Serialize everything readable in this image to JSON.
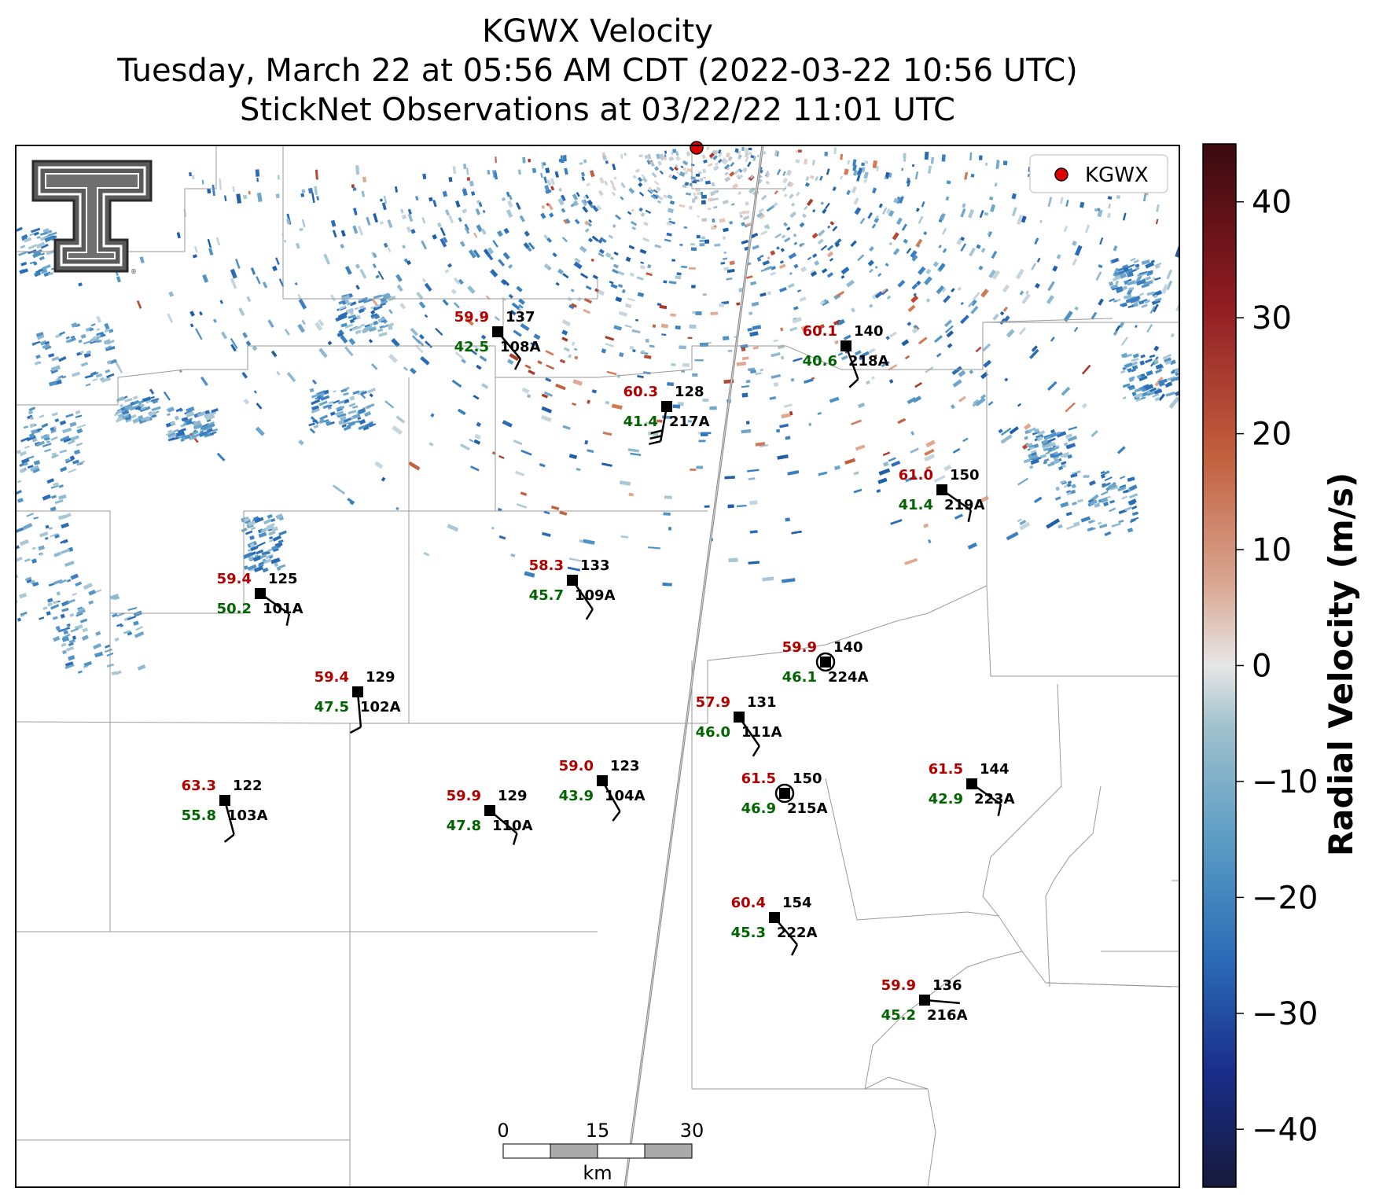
{
  "title": {
    "line1": "KGWX Velocity",
    "line2": "Tuesday, March 22 at 05:56 AM CDT (2022-03-22 10:56 UTC)",
    "line3": "StickNet Observations at 03/22/22 11:01 UTC"
  },
  "legend": {
    "label": "KGWX",
    "marker_color": "#e00000"
  },
  "colorbar": {
    "label": "Radial Velocity (m/s)",
    "ticks": [
      "40",
      "30",
      "20",
      "10",
      "0",
      "−10",
      "−20",
      "−30",
      "−40"
    ],
    "range": [
      -45,
      45
    ],
    "colors": [
      "#171a3b",
      "#1a2d8a",
      "#2b6cb7",
      "#5a9bc4",
      "#9fc0cd",
      "#e6e6e6",
      "#d9a590",
      "#c2603f",
      "#8f1b22",
      "#3a0a10"
    ]
  },
  "scale_bar": {
    "labels": [
      "0",
      "15",
      "30"
    ],
    "unit": "km"
  },
  "logo": {
    "name": "Texas Tech Double T"
  },
  "stations": [
    {
      "id": "108A",
      "temp": "59.9",
      "dew": "42.5",
      "pres": "137"
    },
    {
      "id": "218A",
      "temp": "60.1",
      "dew": "40.6",
      "pres": "140"
    },
    {
      "id": "217A",
      "temp": "60.3",
      "dew": "41.4",
      "pres": "128"
    },
    {
      "id": "219A",
      "temp": "61.0",
      "dew": "41.4",
      "pres": "150"
    },
    {
      "id": "109A",
      "temp": "58.3",
      "dew": "45.7",
      "pres": "133"
    },
    {
      "id": "101A",
      "temp": "59.4",
      "dew": "50.2",
      "pres": "125"
    },
    {
      "id": "224A",
      "temp": "59.9",
      "dew": "46.1",
      "pres": "140"
    },
    {
      "id": "102A",
      "temp": "59.4",
      "dew": "47.5",
      "pres": "129"
    },
    {
      "id": "111A",
      "temp": "57.9",
      "dew": "46.0",
      "pres": "131"
    },
    {
      "id": "104A",
      "temp": "59.0",
      "dew": "43.9",
      "pres": "123"
    },
    {
      "id": "215A",
      "temp": "61.5",
      "dew": "46.9",
      "pres": "150"
    },
    {
      "id": "223A",
      "temp": "61.5",
      "dew": "42.9",
      "pres": "144"
    },
    {
      "id": "103A",
      "temp": "63.3",
      "dew": "55.8",
      "pres": "122"
    },
    {
      "id": "110A",
      "temp": "59.9",
      "dew": "47.8",
      "pres": "129"
    },
    {
      "id": "222A",
      "temp": "60.4",
      "dew": "45.3",
      "pres": "154"
    },
    {
      "id": "216A",
      "temp": "59.9",
      "dew": "45.2",
      "pres": "136"
    }
  ]
}
